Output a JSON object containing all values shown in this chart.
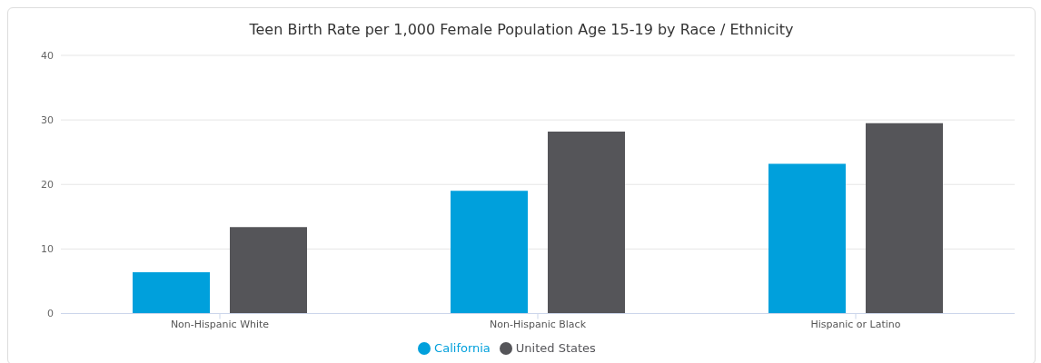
{
  "chart_data": {
    "type": "bar",
    "title": "Teen Birth Rate per 1,000 Female Population Age 15-19 by Race / Ethnicity",
    "categories": [
      "Non-Hispanic White",
      "Non-Hispanic Black",
      "Hispanic or Latino"
    ],
    "series": [
      {
        "name": "California",
        "color": "#00a0dc",
        "values": [
          6.4,
          19.0,
          23.2
        ]
      },
      {
        "name": "United States",
        "color": "#555559",
        "values": [
          13.4,
          28.2,
          29.5
        ]
      }
    ],
    "ylim": [
      0,
      40
    ],
    "yticks": [
      0,
      10,
      20,
      30,
      40
    ],
    "grid": "y",
    "legend": "bottom"
  }
}
